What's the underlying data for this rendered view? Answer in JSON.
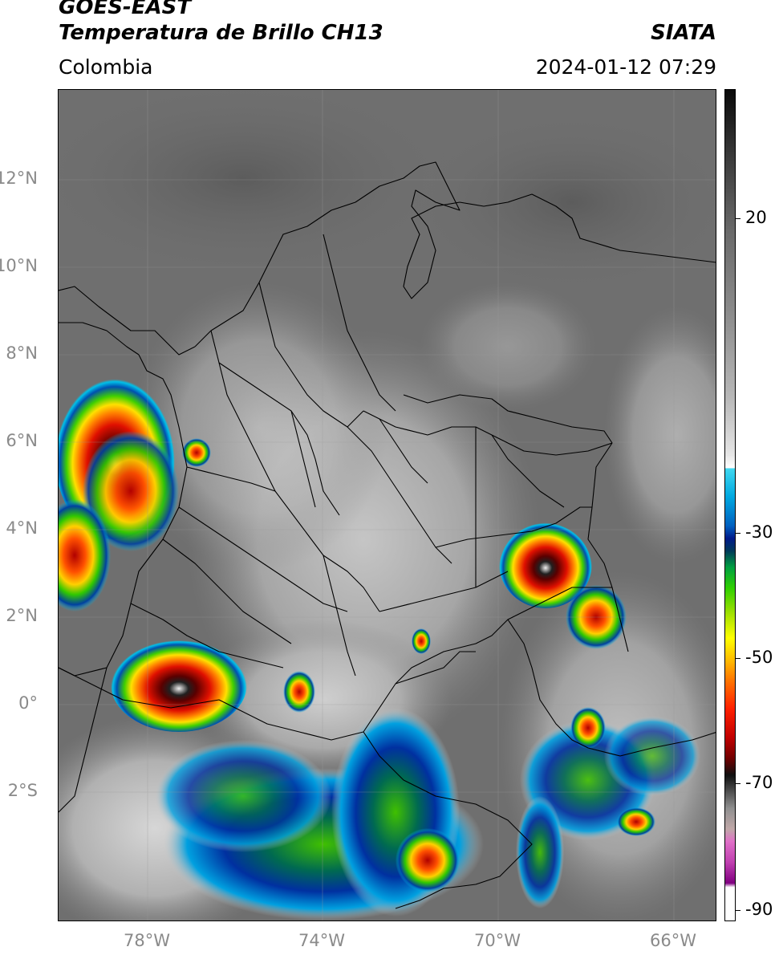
{
  "header": {
    "satellite": "GOES-EAST",
    "product": "Temperatura de Brillo CH13",
    "organization": "SIATA",
    "region": "Colombia",
    "datetime": "2024-01-12 07:29"
  },
  "map": {
    "lat_labels": [
      "12°N",
      "10°N",
      "8°N",
      "6°N",
      "4°N",
      "2°N",
      "0°",
      "2°S"
    ],
    "lon_labels": [
      "78°W",
      "74°W",
      "70°W",
      "66°W"
    ]
  },
  "colorbar": {
    "labels": [
      "20",
      "-30",
      "-50",
      "-70",
      "-90"
    ],
    "colors": {
      "cold": "#000000",
      "warm_gray": "#8c8c8c",
      "cyan": "#00a8e0",
      "blue": "#001a8a",
      "green": "#30d000",
      "yellow": "#ffff00",
      "red": "#ff2000",
      "magenta": "#c040b0"
    }
  }
}
